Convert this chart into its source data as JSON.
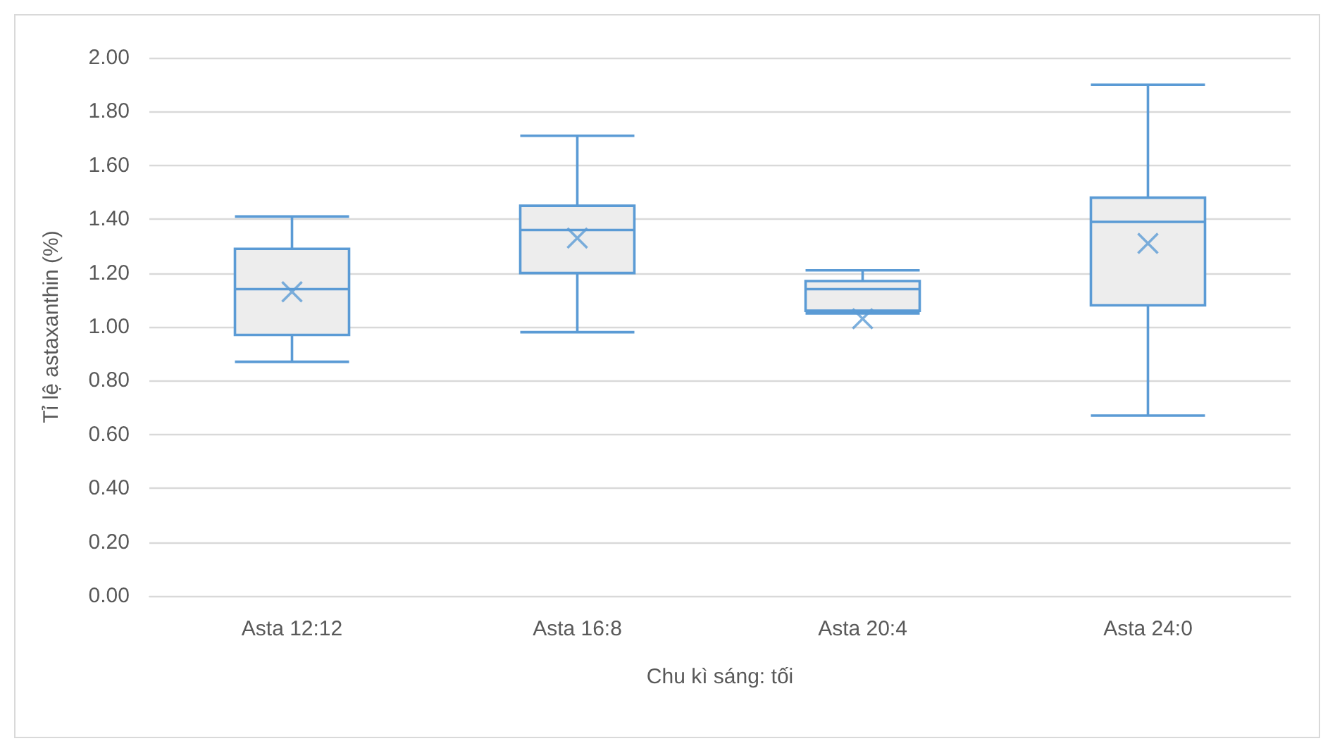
{
  "chart_data": {
    "type": "box",
    "xlabel": "Chu kì sáng: tối",
    "ylabel": "Tỉ lệ astaxanthin (%)",
    "categories": [
      "Asta 12:12",
      "Asta 16:8",
      "Asta 20:4",
      "Asta 24:0"
    ],
    "color": "#5b9bd5",
    "marker": "cross",
    "grid": "y",
    "boxes": [
      {
        "low": 0.87,
        "q1": 0.97,
        "median": 1.14,
        "q3": 1.29,
        "high": 1.41,
        "mean": 1.13
      },
      {
        "low": 0.98,
        "q1": 1.2,
        "median": 1.36,
        "q3": 1.45,
        "high": 1.71,
        "mean": 1.33
      },
      {
        "low": 1.05,
        "q1": 1.06,
        "median": 1.14,
        "q3": 1.17,
        "high": 1.21,
        "mean": 1.03
      },
      {
        "low": 0.67,
        "q1": 1.08,
        "median": 1.39,
        "q3": 1.48,
        "high": 1.9,
        "mean": 1.31
      }
    ],
    "ylim": [
      0,
      2
    ],
    "yticks": [
      {
        "value": 0,
        "label": "0.00"
      },
      {
        "value": 0.2,
        "label": "0.20"
      },
      {
        "value": 0.4,
        "label": "0.40"
      },
      {
        "value": 0.6,
        "label": "0.60"
      },
      {
        "value": 0.8,
        "label": "0.80"
      },
      {
        "value": 1,
        "label": "1.00"
      },
      {
        "value": 1.2,
        "label": "1.20"
      },
      {
        "value": 1.4,
        "label": "1.40"
      },
      {
        "value": 1.6,
        "label": "1.60"
      },
      {
        "value": 1.8,
        "label": "1.80"
      },
      {
        "value": 2,
        "label": "2.00"
      }
    ]
  }
}
